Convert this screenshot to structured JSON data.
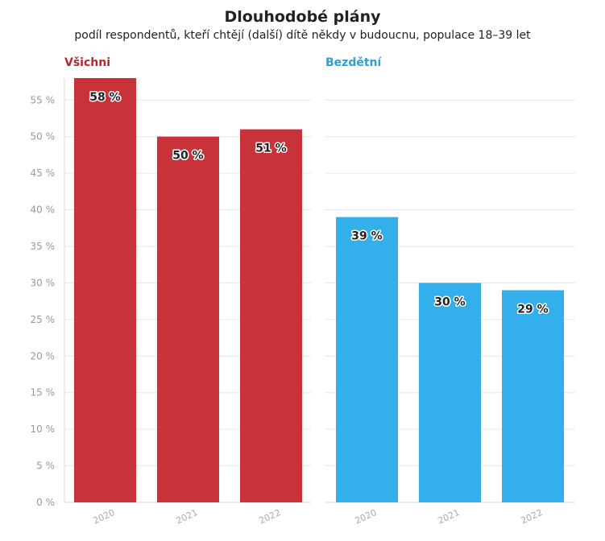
{
  "chart_data": {
    "type": "bar",
    "title": "Dlouhodobé plány",
    "subtitle": "podíl respondentů, kteří chtějí (další) dítě někdy v budoucnu, populace 18–39 let",
    "ylim": [
      0,
      58
    ],
    "yticks": [
      0,
      5,
      10,
      15,
      20,
      25,
      30,
      35,
      40,
      45,
      50,
      55
    ],
    "ytick_suffix": " %",
    "value_suffix": " %",
    "panels": [
      {
        "name": "Všichni",
        "color": "#c8333a",
        "title_color": "#b5262d",
        "categories": [
          "2020",
          "2021",
          "2022"
        ],
        "values": [
          58,
          50,
          51
        ]
      },
      {
        "name": "Bezdětní",
        "color": "#33b0ec",
        "title_color": "#2a9fdc",
        "categories": [
          "2020",
          "2021",
          "2022"
        ],
        "values": [
          39,
          30,
          29
        ]
      }
    ],
    "grid": true,
    "legend": "none"
  }
}
